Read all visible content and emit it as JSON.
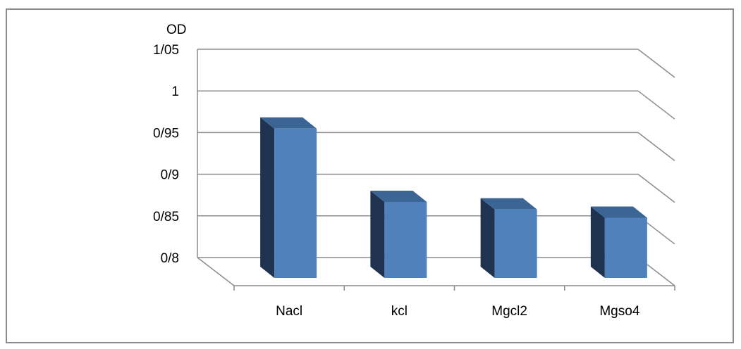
{
  "chart_data": {
    "type": "bar",
    "three_d": true,
    "ylabel": "OD",
    "categories": [
      "Nacl",
      "kcl",
      "Mgcl2",
      "Mgso4"
    ],
    "values": [
      0.975,
      0.887,
      0.878,
      0.868
    ],
    "ylim": [
      0.8,
      1.05
    ],
    "yticks": [
      0.8,
      0.85,
      0.9,
      0.95,
      1,
      1.05
    ],
    "ytick_labels": [
      "0/8",
      "0/85",
      "0/9",
      "0/95",
      "1",
      "1/05"
    ],
    "grid": true,
    "legend": "none",
    "colors": {
      "front": "#4f81bd",
      "side": "#1f3350",
      "top": "#3a6595",
      "grid": "#8c8c8c",
      "axis": "#8c8c8c"
    }
  }
}
